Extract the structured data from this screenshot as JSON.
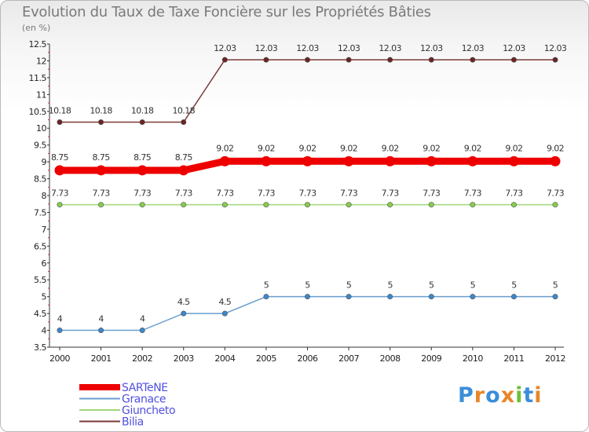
{
  "header": {
    "title": "Evolution du Taux de Taxe Foncière sur les Propriétés Bâties",
    "unit": "(en %)"
  },
  "logo": {
    "text": "Proxiti",
    "letter_colors": [
      "#3b8ed8",
      "#e8862a",
      "#3b8ed8",
      "#e8862a",
      "#6cbf3a",
      "#3b8ed8",
      "#e8862a"
    ]
  },
  "chart_data": {
    "type": "line",
    "title": "Evolution du Taux de Taxe Foncière sur les Propriétés Bâties",
    "ylabel": "(en %)",
    "xlabel": "",
    "x": [
      "2000",
      "2001",
      "2002",
      "2003",
      "2004",
      "2005",
      "2006",
      "2007",
      "2008",
      "2009",
      "2010",
      "2011",
      "2012"
    ],
    "ylim": [
      3.5,
      12.5
    ],
    "yticks": [
      "3.5",
      "4",
      "4.5",
      "5",
      "5.5",
      "6",
      "6.5",
      "7",
      "7.5",
      "8",
      "8.5",
      "9",
      "9.5",
      "10",
      "10.5",
      "11",
      "11.5",
      "12",
      "12.5"
    ],
    "series": [
      {
        "name": "SARTeNE",
        "color": "#ee0000",
        "emphasis": true,
        "values": [
          8.75,
          8.75,
          8.75,
          8.75,
          9.02,
          9.02,
          9.02,
          9.02,
          9.02,
          9.02,
          9.02,
          9.02,
          9.02
        ],
        "labels": [
          "8.75",
          "8.75",
          "8.75",
          "8.75",
          "9.02",
          "9.02",
          "9.02",
          "9.02",
          "9.02",
          "9.02",
          "9.02",
          "9.02",
          "9.02"
        ]
      },
      {
        "name": "Granace",
        "color": "#6a9fcf",
        "marker_color": "#3d87c9",
        "values": [
          4,
          4,
          4,
          4.5,
          4.5,
          5,
          5,
          5,
          5,
          5,
          5,
          5,
          5
        ],
        "labels": [
          "4",
          "4",
          "4",
          "4.5",
          "4.5",
          "5",
          "5",
          "5",
          "5",
          "5",
          "5",
          "5",
          "5"
        ]
      },
      {
        "name": "Giuncheto",
        "color": "#9fd87a",
        "marker_color": "#86cc4e",
        "values": [
          7.73,
          7.73,
          7.73,
          7.73,
          7.73,
          7.73,
          7.73,
          7.73,
          7.73,
          7.73,
          7.73,
          7.73,
          7.73
        ],
        "labels": [
          "7.73",
          "7.73",
          "7.73",
          "7.73",
          "7.73",
          "7.73",
          "7.73",
          "7.73",
          "7.73",
          "7.73",
          "7.73",
          "7.73",
          "7.73"
        ]
      },
      {
        "name": "Bilia",
        "color": "#7a3a3a",
        "marker_color": "#6b2424",
        "values": [
          10.18,
          10.18,
          10.18,
          10.18,
          12.03,
          12.03,
          12.03,
          12.03,
          12.03,
          12.03,
          12.03,
          12.03,
          12.03
        ],
        "labels": [
          "10.18",
          "10.18",
          "10.18",
          "10.18",
          "12.03",
          "12.03",
          "12.03",
          "12.03",
          "12.03",
          "12.03",
          "12.03",
          "12.03",
          "12.03"
        ]
      }
    ],
    "grid": false,
    "legend": "bottom-left"
  }
}
